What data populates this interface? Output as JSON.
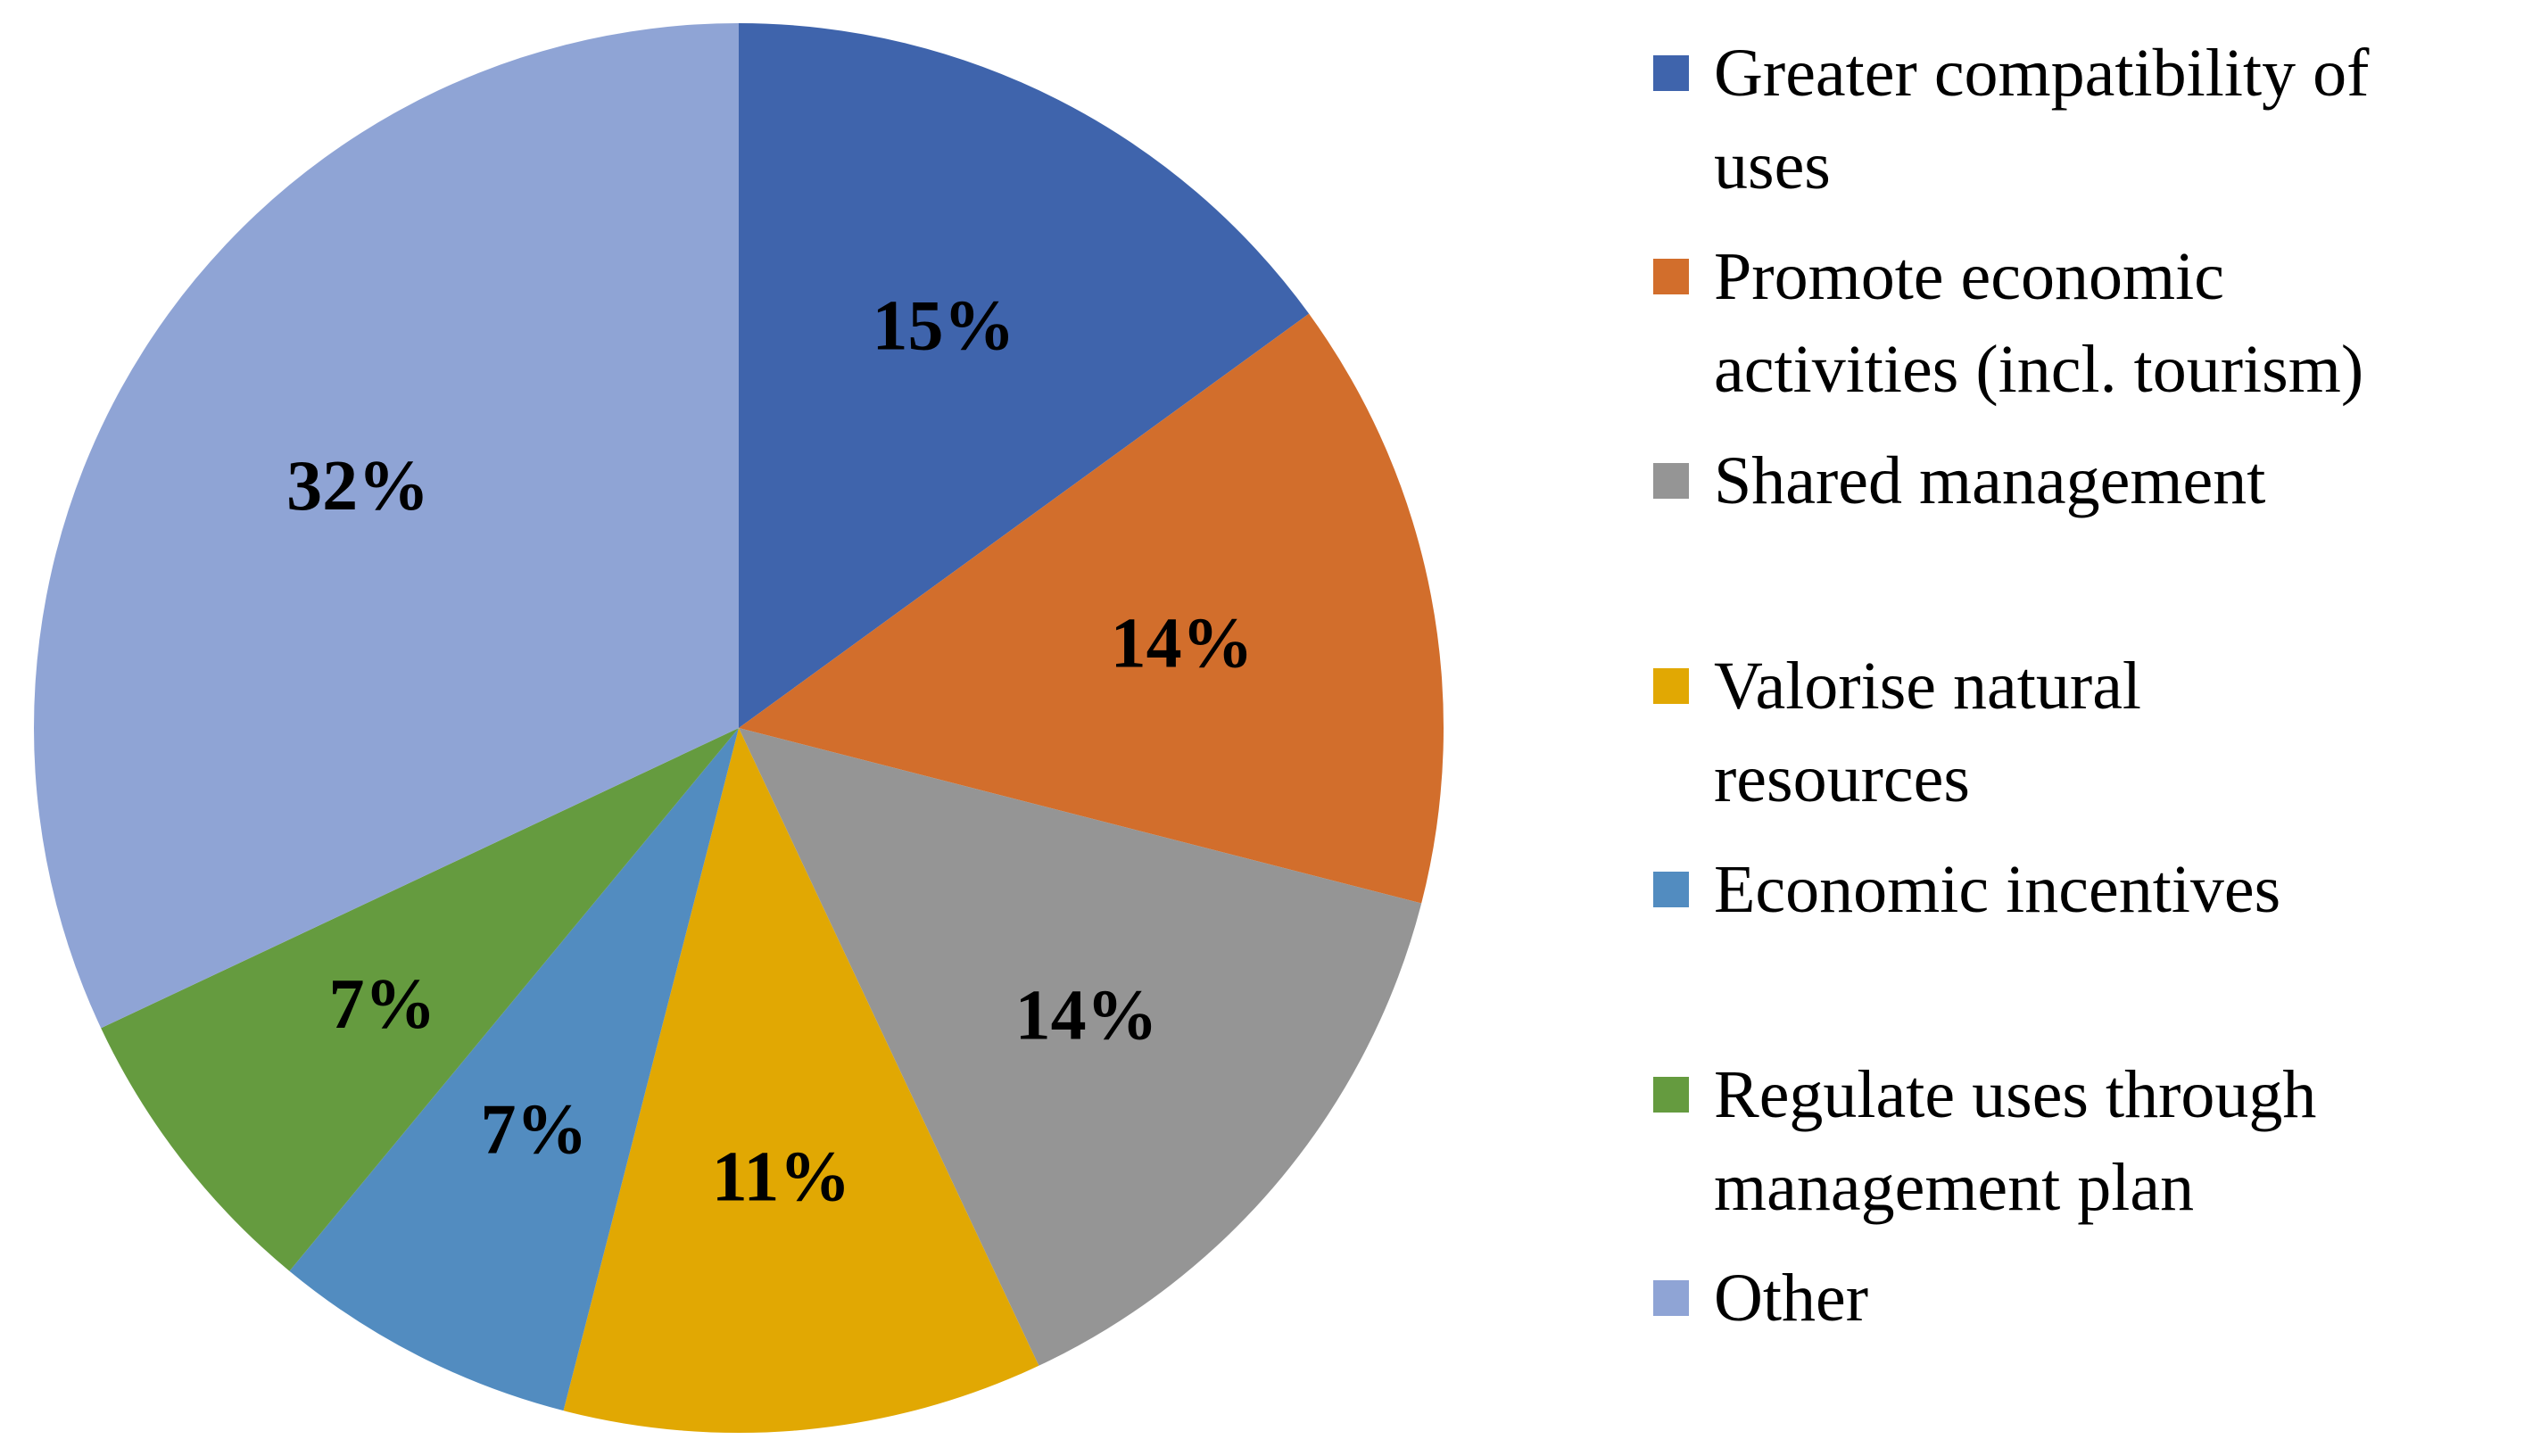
{
  "chart_data": {
    "type": "pie",
    "title": "",
    "start_angle": "12 o'clock",
    "direction": "clockwise",
    "legend_position": "right",
    "series": [
      {
        "name": "Greater compatibility of uses",
        "value": 15,
        "label": "15%",
        "color": "#3F64AC"
      },
      {
        "name": "Promote economic activities (incl. tourism)",
        "value": 14,
        "label": "14%",
        "color": "#D26E2C"
      },
      {
        "name": "Shared management",
        "value": 14,
        "label": "14%",
        "color": "#959595"
      },
      {
        "name": "Valorise natural resources",
        "value": 11,
        "label": "11%",
        "color": "#E1A803"
      },
      {
        "name": "Economic incentives",
        "value": 7,
        "label": "7%",
        "color": "#528CC0"
      },
      {
        "name": "Regulate uses through management plan",
        "value": 7,
        "label": "7%",
        "color": "#659B3F"
      },
      {
        "name": "Other",
        "value": 32,
        "label": "32%",
        "color": "#8FA4D5"
      }
    ]
  },
  "legend": {
    "items": [
      "Greater compatibility of\nuses",
      "Promote economic\nactivities (incl. tourism)",
      "Shared management",
      "Valorise natural\nresources",
      "Economic incentives",
      "Regulate uses through\nmanagement plan",
      "Other"
    ]
  }
}
